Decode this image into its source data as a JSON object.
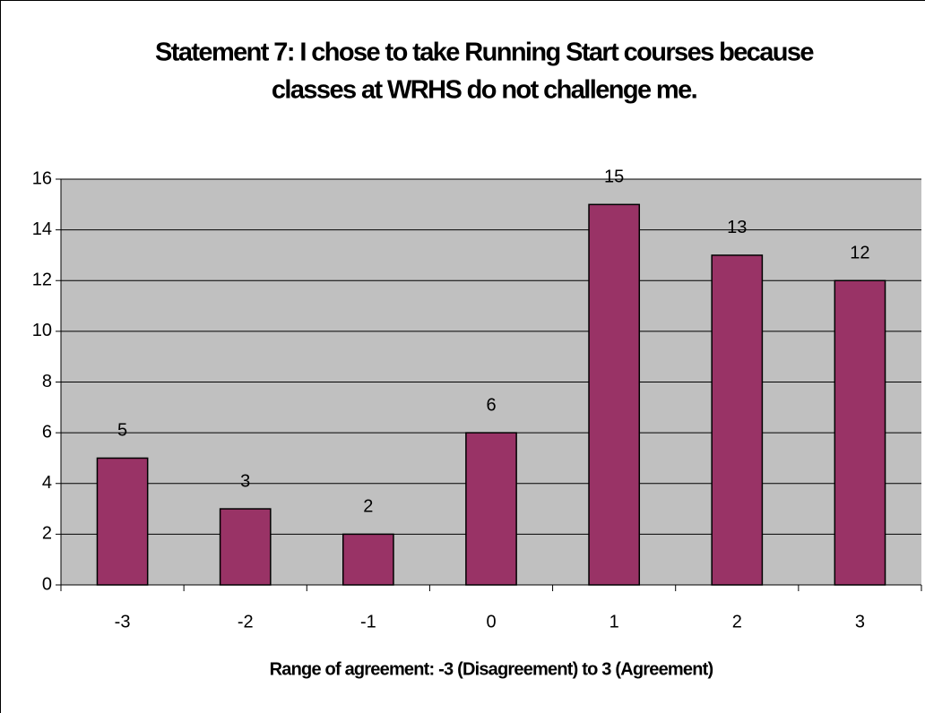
{
  "chart_data": {
    "type": "bar",
    "title": [
      "Statement 7:  I chose to take Running Start courses because",
      "classes at WRHS do not challenge me."
    ],
    "x_label": "Range of agreement:  -3 (Disagreement) to 3 (Agreement)",
    "categories": [
      "-3",
      "-2",
      "-1",
      "0",
      "1",
      "2",
      "3"
    ],
    "values": [
      5,
      3,
      2,
      6,
      15,
      13,
      12
    ],
    "color": "#993366",
    "plot_background": "#c0c0c0",
    "ylim": [
      0,
      16
    ],
    "yticks": [
      0,
      2,
      4,
      6,
      8,
      10,
      12,
      14,
      16
    ],
    "grid": true
  }
}
